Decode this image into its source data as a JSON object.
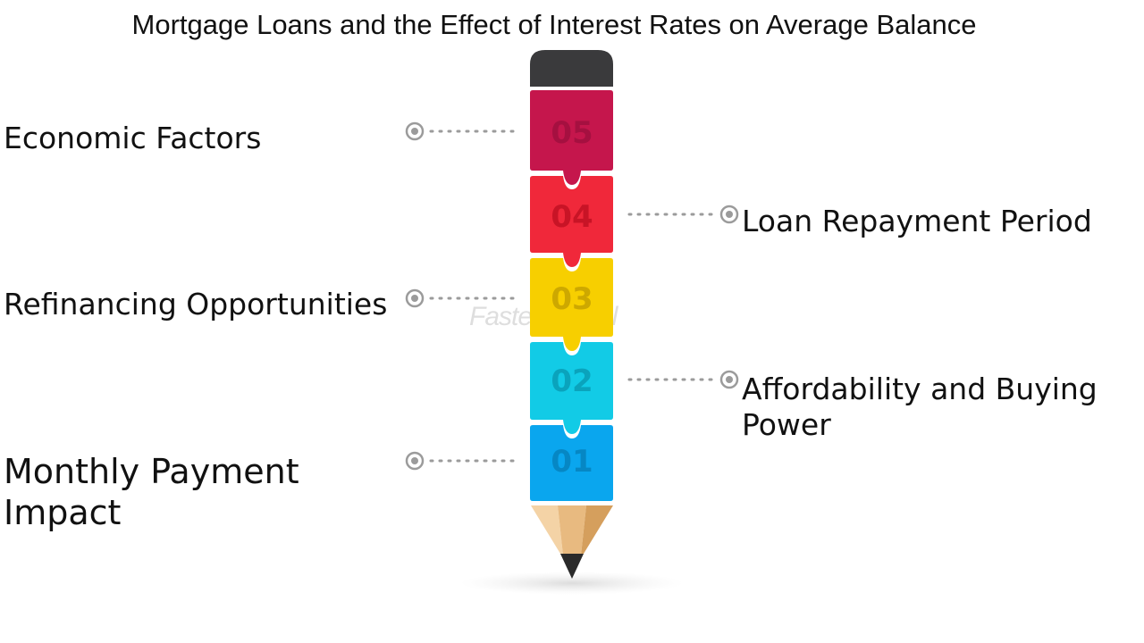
{
  "title": "Mortgage Loans and the Effect of Interest Rates on Average Balance",
  "steps": [
    {
      "number": "05",
      "label": "Economic Factors",
      "side": "left",
      "color": "#C5164C",
      "num_color": "#A51040"
    },
    {
      "number": "04",
      "label": "Loan Repayment Period",
      "side": "right",
      "color": "#F0283A",
      "num_color": "#C81426"
    },
    {
      "number": "03",
      "label": "Refinancing Opportunities",
      "side": "left",
      "color": "#F7CF00",
      "num_color": "#CDA800"
    },
    {
      "number": "02",
      "label": "Affordability and Buying Power",
      "side": "right",
      "color": "#12CBE6",
      "num_color": "#0AA3BC"
    },
    {
      "number": "01",
      "label": "Monthly Payment Impact",
      "side": "left",
      "color": "#0AA6EE",
      "num_color": "#0687C4"
    }
  ],
  "colors": {
    "eraser": "#3A3A3C",
    "wood_light": "#F4D3A6",
    "wood_mid": "#E8BA80",
    "wood_dark": "#D59F5D",
    "lead": "#2A2A2A",
    "connector": "#9B9B9B"
  },
  "watermark": "FasterCapital"
}
